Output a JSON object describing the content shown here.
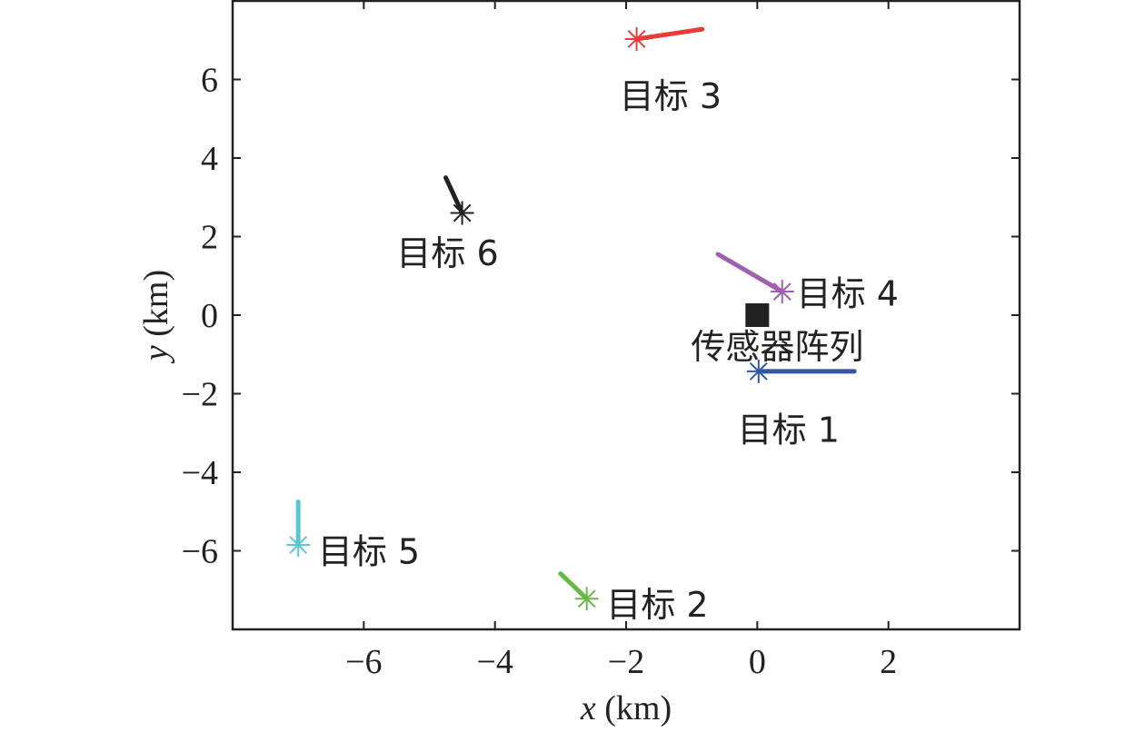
{
  "chart_data": {
    "type": "scatter",
    "xlabel": {
      "var": "x",
      "unit": " (km)"
    },
    "ylabel": {
      "var": "y",
      "unit": " (km)"
    },
    "xlim": [
      -8,
      4
    ],
    "ylim": [
      -8,
      8
    ],
    "xticks": [
      -6,
      -4,
      -2,
      0,
      2
    ],
    "yticks": [
      -6,
      -4,
      -2,
      0,
      2,
      4,
      6
    ],
    "grid": false,
    "sensor": {
      "x": 0,
      "y": 0,
      "label": "传感器阵列",
      "color": "#222222"
    },
    "targets": [
      {
        "label": "目标 1",
        "color": "#3355a6",
        "x": 0.02,
        "y": -1.43,
        "track": [
          [
            0.02,
            -1.43
          ],
          [
            1.48,
            -1.43
          ]
        ],
        "label_x": -0.3,
        "label_y": -2.9
      },
      {
        "label": "目标 2",
        "color": "#67b846",
        "x": -2.6,
        "y": -7.22,
        "track": [
          [
            -2.6,
            -7.22
          ],
          [
            -3.0,
            -6.58
          ]
        ],
        "label_x": -2.3,
        "label_y": -7.35
      },
      {
        "label": "目标 3",
        "color": "#e83a3a",
        "x": -1.84,
        "y": 7.03,
        "track": [
          [
            -1.84,
            7.03
          ],
          [
            -0.84,
            7.28
          ]
        ],
        "label_x": -2.1,
        "label_y": 5.6
      },
      {
        "label": "目标 4",
        "color": "#a060b0",
        "x": 0.38,
        "y": 0.6,
        "track": [
          [
            0.38,
            0.6
          ],
          [
            -0.6,
            1.55
          ]
        ],
        "label_x": 0.6,
        "label_y": 0.57
      },
      {
        "label": "目标 5",
        "color": "#5bc6d2",
        "x": -7.0,
        "y": -5.85,
        "track": [
          [
            -7.0,
            -5.85
          ],
          [
            -7.0,
            -4.75
          ]
        ],
        "label_x": -6.7,
        "label_y": -6.0
      },
      {
        "label": "目标 6",
        "color": "#222222",
        "x": -4.5,
        "y": 2.6,
        "track": [
          [
            -4.5,
            2.6
          ],
          [
            -4.75,
            3.5
          ]
        ],
        "label_x": -5.5,
        "label_y": 1.6
      }
    ]
  }
}
